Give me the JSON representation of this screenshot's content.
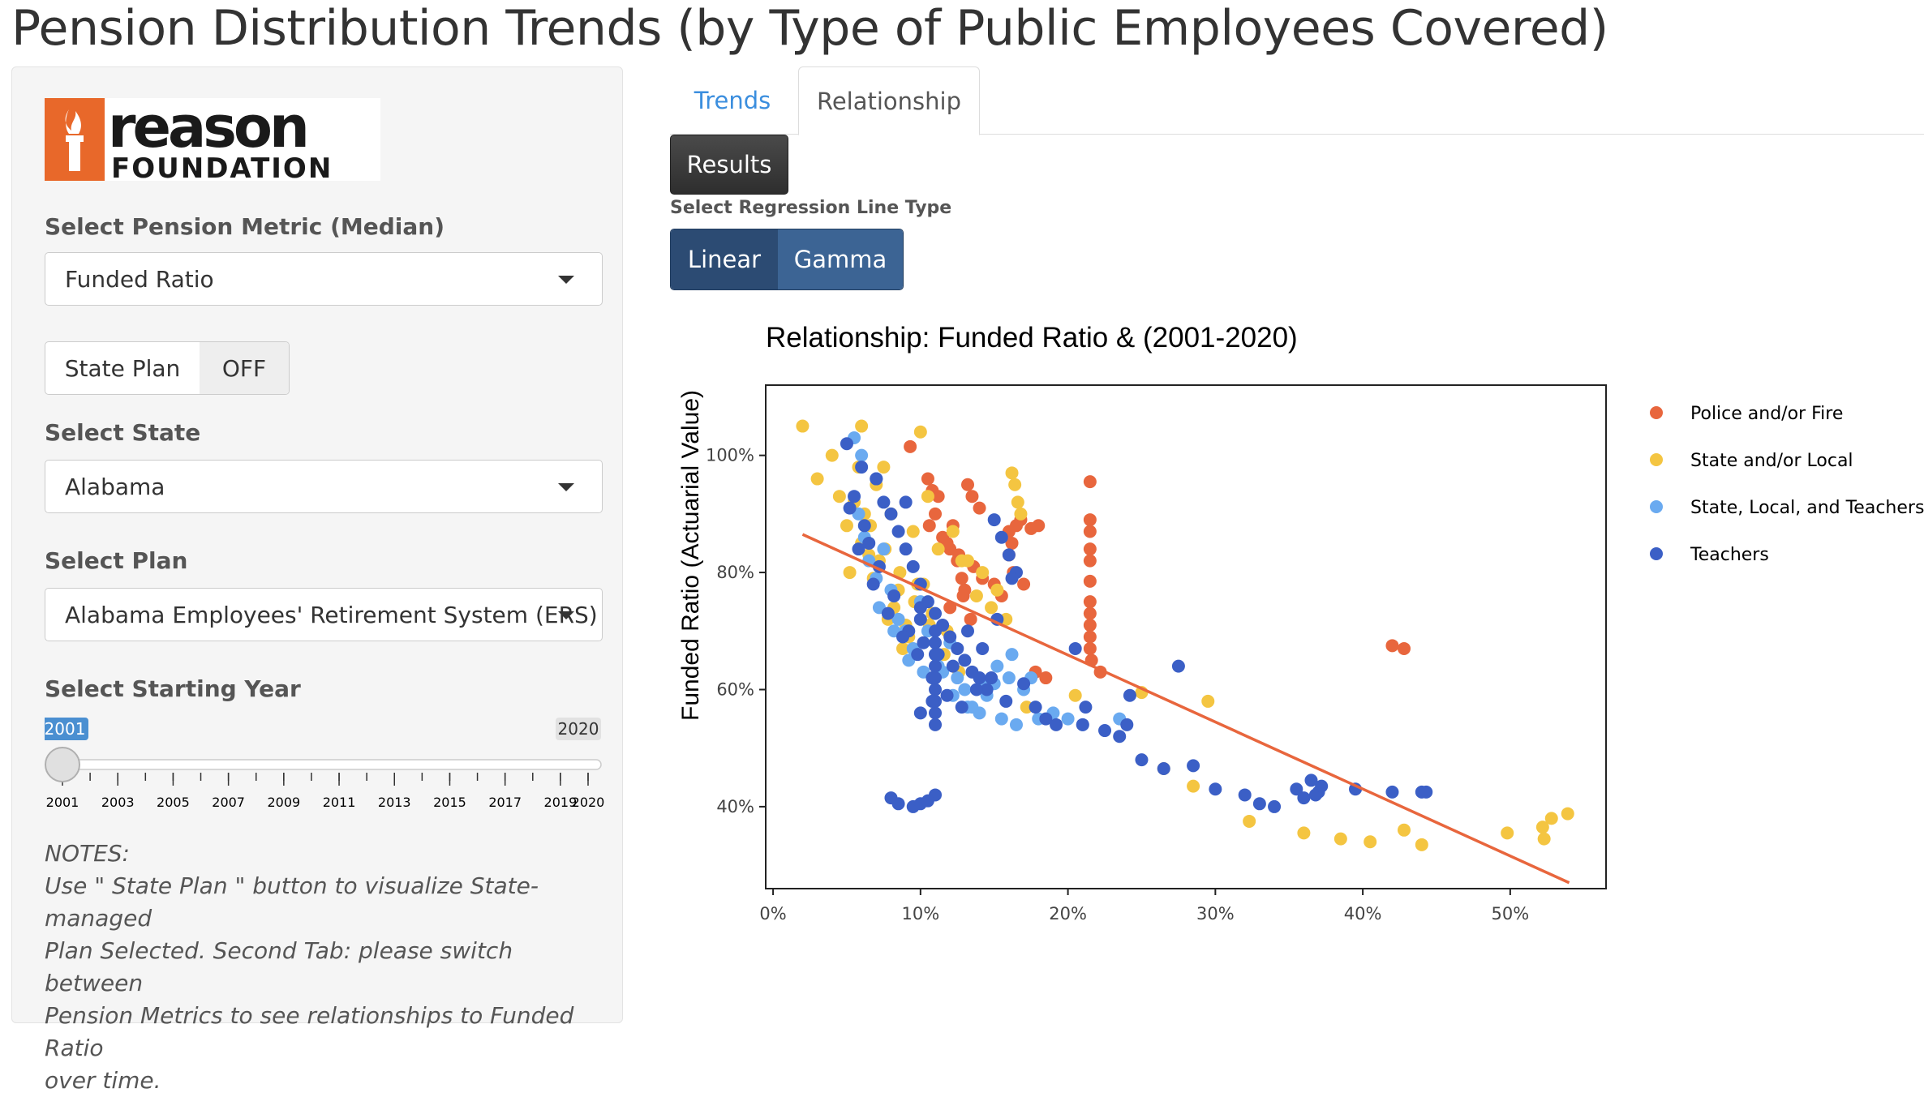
{
  "page": {
    "title": "Pension Distribution Trends (by Type of Public Employees Covered)"
  },
  "logo": {
    "word1": "reason",
    "word2": "FOUNDATION",
    "color": "#e8682a"
  },
  "sidebar": {
    "metric_label": "Select Pension Metric (Median)",
    "metric_value": "Funded Ratio",
    "toggle_label": "State Plan",
    "toggle_state": "OFF",
    "state_label": "Select State",
    "state_value": "Alabama",
    "plan_label": "Select Plan",
    "plan_value": "Alabama Employees' Retirement System (ERS)",
    "year_label": "Select Starting Year",
    "slider": {
      "min": 2001,
      "max": 2020,
      "value": 2001,
      "min_label": "2001",
      "max_label": "2020",
      "ticks": [
        "2001",
        "2003",
        "2005",
        "2007",
        "2009",
        "2011",
        "2013",
        "2015",
        "2017",
        "2019",
        "2020"
      ]
    },
    "notes": [
      "NOTES:",
      "Use \" State Plan \" button to visualize State-managed",
      "Plan Selected. Second Tab: please switch between",
      "Pension Metrics to see relationships to Funded Ratio",
      "over time."
    ]
  },
  "tabs": [
    {
      "label": "Trends",
      "active": false
    },
    {
      "label": "Relationship",
      "active": true
    }
  ],
  "results_button": "Results",
  "regression": {
    "label": "Select Regression Line Type",
    "options": [
      "Linear",
      "Gamma"
    ],
    "selected": "Linear"
  },
  "chart_data": {
    "type": "scatter",
    "title": "Relationship: Funded Ratio &  (2001-2020)",
    "xlabel": "",
    "ylabel": "Funded Ratio (Actuarial Value)",
    "xlim": [
      -0.5,
      56.5
    ],
    "ylim": [
      26,
      112
    ],
    "xticks": [
      0,
      10,
      20,
      30,
      40,
      50
    ],
    "xtick_labels": [
      "0%",
      "10%",
      "20%",
      "30%",
      "40%",
      "50%"
    ],
    "yticks": [
      40,
      60,
      80,
      100
    ],
    "ytick_labels": [
      "40%",
      "60%",
      "80%",
      "100%"
    ],
    "legend_position": "right",
    "regression_line": {
      "type": "linear",
      "color": "#e8663d",
      "x": [
        2,
        54
      ],
      "y": [
        86.5,
        27
      ]
    },
    "series": [
      {
        "name": "Police and/or Fire",
        "color": "#e8663d",
        "x": [
          9.3,
          10.5,
          10.8,
          11.2,
          11.0,
          10.6,
          11.5,
          12.0,
          12.5,
          12.8,
          13.0,
          13.2,
          13.5,
          14.0,
          12.2,
          11.8,
          12.6,
          13.6,
          14.2,
          15.0,
          15.5,
          16.0,
          16.2,
          16.5,
          16.8,
          17.5,
          18.0,
          16.0,
          16.3,
          17.0,
          21.5,
          21.5,
          21.5,
          21.5,
          21.5,
          21.5,
          21.5,
          21.5,
          21.5,
          21.5,
          21.5,
          21.6,
          22.2,
          17.8,
          18.5,
          42.0,
          42.8,
          12.0,
          13.4,
          12.9
        ],
        "y": [
          101.5,
          96,
          94,
          93,
          90,
          88,
          86,
          84,
          82,
          79,
          77,
          95,
          93,
          91,
          88,
          85,
          83,
          81,
          79,
          78,
          76,
          87,
          85,
          88,
          89,
          87.5,
          88,
          83,
          80,
          78,
          95.5,
          89,
          87,
          84,
          82,
          78.5,
          75,
          73,
          71,
          69,
          67,
          65,
          63,
          63,
          62,
          67.5,
          67,
          74,
          72,
          76
        ]
      },
      {
        "name": "State and/or Local",
        "color": "#f4c541",
        "x": [
          2.0,
          3.0,
          4.0,
          4.5,
          5.0,
          5.5,
          6.0,
          6.5,
          7.0,
          7.5,
          8.0,
          8.5,
          9.0,
          9.5,
          10.0,
          10.5,
          5.2,
          6.2,
          7.2,
          8.2,
          9.2,
          10.2,
          11.2,
          12.2,
          13.2,
          14.2,
          15.2,
          16.2,
          16.4,
          16.6,
          16.8,
          6.0,
          6.8,
          7.8,
          8.8,
          9.8,
          10.8,
          11.8,
          12.8,
          13.8,
          14.8,
          15.8,
          5.8,
          6.6,
          7.6,
          8.6,
          9.6,
          10.6,
          11.6,
          12.6,
          17.2,
          20.5,
          25.0,
          26.5,
          29.5,
          32.3,
          36.0,
          38.5,
          40.5,
          42.8,
          44.0,
          49.8,
          52.2,
          52.3,
          52.8,
          53.9,
          28.5
        ],
        "y": [
          105,
          96,
          100,
          93,
          88,
          92,
          105,
          83,
          95,
          98,
          90,
          77,
          71,
          87,
          104,
          93,
          80,
          90,
          82,
          74,
          69,
          78,
          84,
          87,
          82,
          80,
          77,
          97,
          95,
          92,
          90,
          85,
          79,
          72,
          67,
          78,
          73,
          70,
          82,
          76,
          74,
          72,
          98,
          88,
          84,
          80,
          75,
          71,
          66,
          63,
          57,
          59,
          59.5,
          46.5,
          58,
          37.5,
          35.5,
          34.5,
          34,
          36,
          33.5,
          35.5,
          36.5,
          34.5,
          38,
          38.8,
          43.5
        ]
      },
      {
        "name": "State, Local, and Teachers",
        "color": "#6aaaf0",
        "x": [
          5.5,
          6.0,
          6.5,
          7.0,
          7.5,
          8.0,
          8.5,
          9.0,
          9.5,
          10.0,
          10.5,
          11.0,
          11.5,
          12.0,
          12.5,
          13.0,
          13.5,
          14.0,
          14.5,
          15.0,
          15.5,
          16.0,
          16.5,
          17.0,
          18.0,
          19.0,
          20.0,
          21.0,
          23.5,
          6.2,
          7.2,
          8.2,
          9.2,
          10.2,
          11.2,
          12.2,
          13.2,
          14.2,
          15.2,
          16.2,
          17.5,
          5.8
        ],
        "y": [
          103,
          100,
          82,
          79,
          84,
          77,
          72,
          70,
          67,
          75,
          70,
          66,
          63,
          68,
          62,
          60,
          57,
          56,
          59,
          61,
          55,
          62,
          54,
          60,
          55,
          56,
          55,
          54,
          55,
          86,
          74,
          70,
          65,
          63,
          64,
          59,
          57,
          61,
          64,
          66,
          62,
          90
        ]
      },
      {
        "name": "Teachers",
        "color": "#3b5fc6",
        "x": [
          5.0,
          5.5,
          6.0,
          6.5,
          7.0,
          7.5,
          8.0,
          8.5,
          9.0,
          9.5,
          10.0,
          10.5,
          11.0,
          11.5,
          12.0,
          12.5,
          13.0,
          13.5,
          14.0,
          14.5,
          15.0,
          15.5,
          16.0,
          16.5,
          17.0,
          5.2,
          6.2,
          7.2,
          8.2,
          9.2,
          10.2,
          11.2,
          12.2,
          13.2,
          14.2,
          15.2,
          16.2,
          5.8,
          6.8,
          7.8,
          8.8,
          9.8,
          10.8,
          11.8,
          12.8,
          13.8,
          14.8,
          15.8,
          10.0,
          10.0,
          10.0,
          11.0,
          11.0,
          11.0,
          11.0,
          11.0,
          11.0,
          11.0,
          11.0,
          11.0,
          11.0,
          8.0,
          8.5,
          9.5,
          10.0,
          10.5,
          10.8,
          17.8,
          18.5,
          19.2,
          20.5,
          21.0,
          21.2,
          22.5,
          23.5,
          24.0,
          25.0,
          26.5,
          28.5,
          30.0,
          32.0,
          33.0,
          34.0,
          35.5,
          36.0,
          36.8,
          37.0,
          37.2,
          39.5,
          42.0,
          44.0,
          44.3,
          24.2,
          27.5,
          36.5,
          7.0,
          9.0
        ],
        "y": [
          102,
          93,
          98,
          85,
          96,
          92,
          90,
          87,
          84,
          81,
          78,
          75,
          73,
          71,
          69,
          67,
          65,
          63,
          62,
          60,
          89,
          86,
          83,
          80,
          61,
          91,
          88,
          81,
          76,
          70,
          68,
          66,
          64,
          70,
          67,
          72,
          79,
          84,
          78,
          73,
          69,
          66,
          62,
          59,
          57,
          60,
          62,
          58,
          56,
          74,
          72,
          70,
          68,
          66,
          64,
          62,
          60,
          58,
          56,
          54,
          42,
          41.5,
          40.5,
          40,
          40.5,
          41,
          58,
          57,
          55,
          54,
          67,
          54,
          57,
          53,
          52,
          54,
          48,
          46.5,
          47,
          43,
          42,
          40.5,
          40,
          43,
          41.5,
          42,
          42.5,
          43.5,
          43,
          42.5,
          42.5,
          42.5,
          59,
          64,
          44.5,
          96,
          92
        ]
      }
    ]
  }
}
